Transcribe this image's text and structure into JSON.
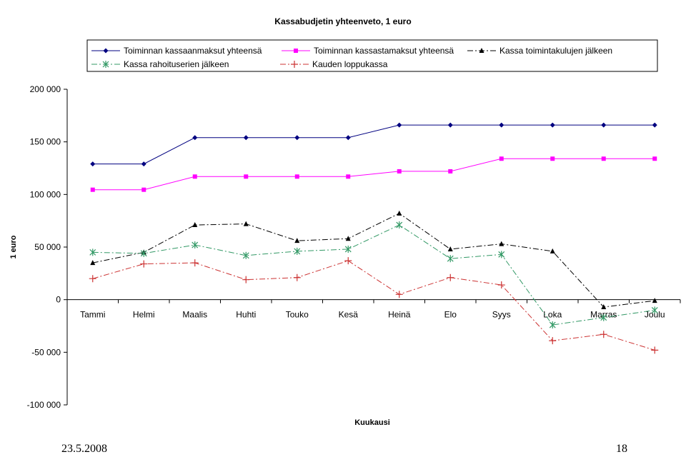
{
  "chart_data": {
    "type": "line",
    "title": "Kassabudjetin yhteenveto,  1 euro",
    "xlabel": "Kuukausi",
    "ylabel": "1 euro",
    "ylim": [
      -100000,
      200000
    ],
    "yticks": [
      200000,
      150000,
      100000,
      50000,
      0,
      -50000,
      -100000
    ],
    "ytick_labels": [
      "200 000",
      "150 000",
      "100 000",
      "50 000",
      "0",
      "-50 000",
      "-100 000"
    ],
    "grid": false,
    "legend_position": "top",
    "categories": [
      "Tammi",
      "Helmi",
      "Maalis",
      "Huhti",
      "Touko",
      "Kesä",
      "Heinä",
      "Elo",
      "Syys",
      "Loka",
      "Marras",
      "Joulu"
    ],
    "series": [
      {
        "name": "Toiminnan kassaanmaksut yhteensä",
        "color": "#000080",
        "marker": "diamond",
        "dash": "solid",
        "values": [
          129000,
          129000,
          154000,
          154000,
          154000,
          154000,
          166000,
          166000,
          166000,
          166000,
          166000,
          166000
        ]
      },
      {
        "name": "Toiminnan kassastamaksut yhteensä",
        "color": "#ff00ff",
        "marker": "square",
        "dash": "solid",
        "values": [
          104500,
          104500,
          117000,
          117000,
          117000,
          117000,
          122000,
          122000,
          134000,
          134000,
          134000,
          134000
        ]
      },
      {
        "name": "Kassa toimintakulujen jälkeen",
        "color": "#000000",
        "marker": "triangle",
        "dash": "dashdot",
        "values": [
          35000,
          45000,
          71000,
          72000,
          56000,
          58000,
          82000,
          48000,
          53000,
          46000,
          -7000,
          -1000
        ]
      },
      {
        "name": "Kassa rahoituserien jälkeen",
        "color": "#339966",
        "marker": "asterisk",
        "dash": "dashdot",
        "values": [
          45000,
          44000,
          52000,
          42000,
          46000,
          48000,
          71000,
          39000,
          43000,
          -24000,
          -17000,
          -10000
        ]
      },
      {
        "name": "Kauden loppukassa",
        "color": "#cc3333",
        "marker": "plus",
        "dash": "dashdot",
        "values": [
          20000,
          34000,
          35000,
          19000,
          21000,
          37000,
          5000,
          21000,
          14000,
          -39000,
          -33000,
          -48000
        ]
      }
    ]
  },
  "footer": {
    "date": "23.5.2008",
    "page": "18"
  }
}
